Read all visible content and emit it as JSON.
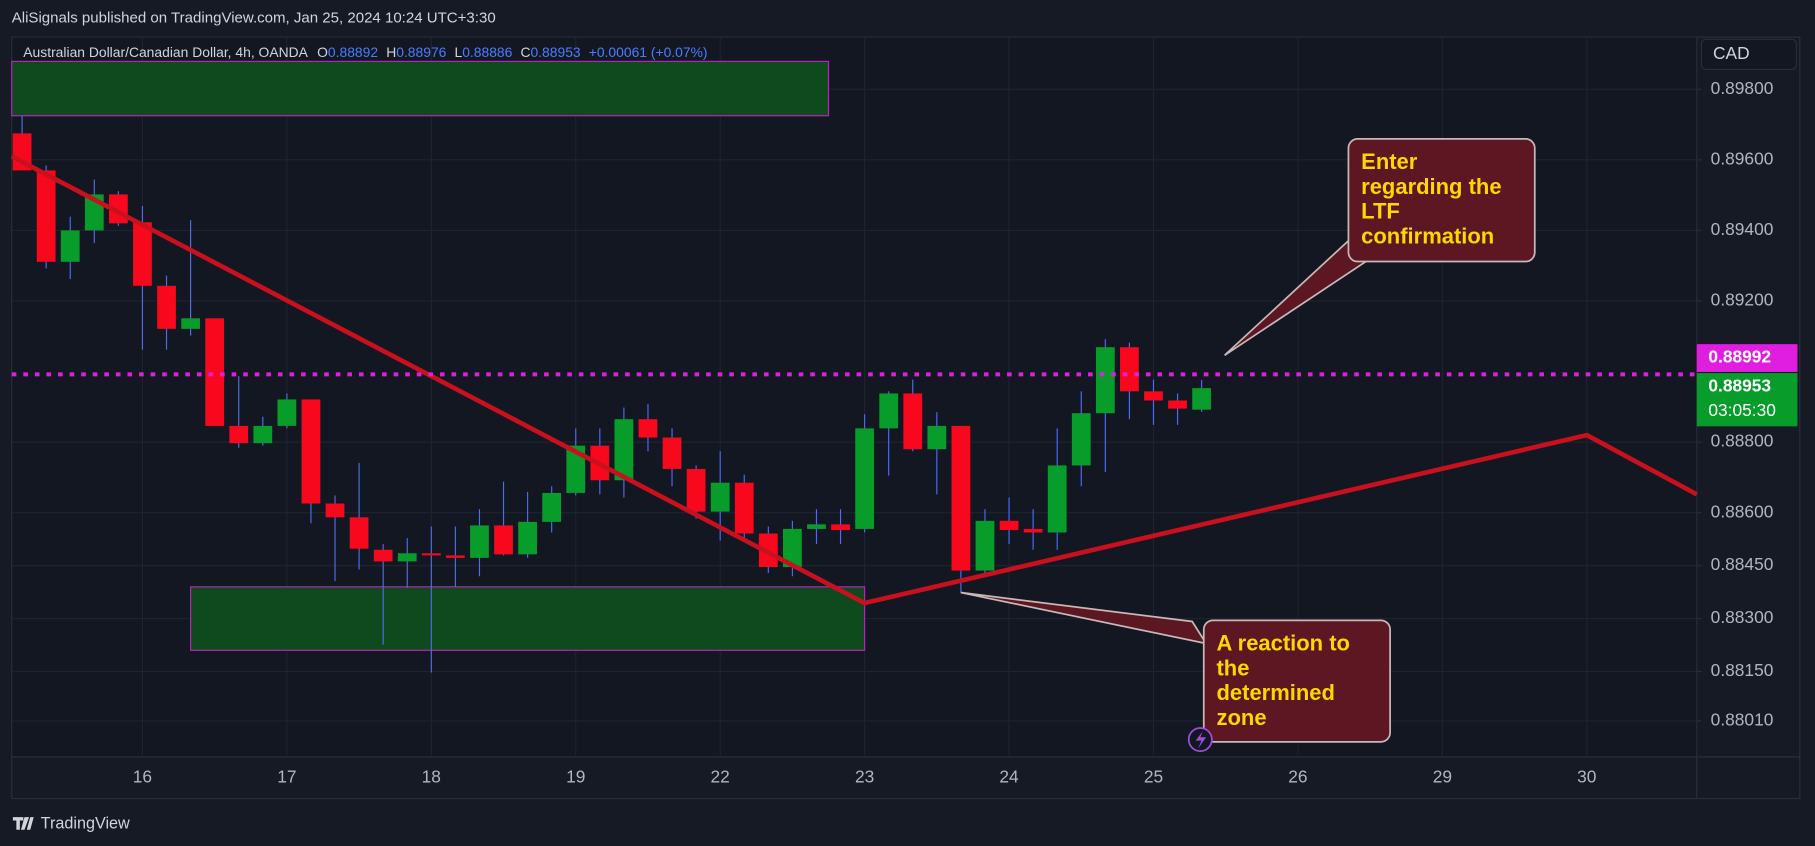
{
  "header": {
    "publisher": "AliSignals published on TradingView.com, Jan 25, 2024 10:24 UTC+3:30",
    "brand": "TradingView"
  },
  "chart_data": {
    "type": "candlestick",
    "title": "Australian Dollar/Canadian Dollar, 4h, OANDA",
    "ohlc_labels": [
      "O",
      "H",
      "L",
      "C"
    ],
    "change": "+0.00061 (+0.07%)",
    "currency": "CAD",
    "up_color": "#089c2a",
    "down_color": "#f7081d",
    "wick_color": "#4a6cf7",
    "grid": true,
    "x": [
      0,
      1,
      2,
      3,
      4,
      5,
      6,
      7,
      8,
      9,
      10,
      11,
      12,
      13,
      14,
      15,
      16,
      17,
      18,
      19,
      20,
      21,
      22,
      23,
      24,
      25,
      26,
      27,
      28,
      29,
      30,
      31,
      32,
      33,
      34,
      35,
      36,
      37,
      38,
      39,
      40,
      41,
      42,
      43,
      44,
      45,
      46,
      47,
      48,
      49
    ],
    "open": [
      0.89675,
      0.8957,
      0.89311,
      0.894,
      0.89502,
      0.89423,
      0.89243,
      0.89121,
      0.89151,
      0.88846,
      0.88797,
      0.88846,
      0.88921,
      0.88626,
      0.88587,
      0.88495,
      0.88462,
      0.88485,
      0.88479,
      0.88472,
      0.88564,
      0.88482,
      0.88574,
      0.88656,
      0.8879,
      0.88692,
      0.88865,
      0.88813,
      0.88724,
      0.88603,
      0.88685,
      0.88541,
      0.88446,
      0.88554,
      0.88567,
      0.88554,
      0.88839,
      0.88938,
      0.8878,
      0.88846,
      0.88436,
      0.88577,
      0.88554,
      0.88544,
      0.88734,
      0.88882,
      0.89069,
      0.88944,
      0.88918,
      0.88892
    ],
    "high": [
      0.89725,
      0.89584,
      0.89439,
      0.89544,
      0.89511,
      0.89469,
      0.89272,
      0.89429,
      0.89151,
      0.88987,
      0.88872,
      0.88938,
      0.88921,
      0.88649,
      0.88741,
      0.88511,
      0.88528,
      0.88561,
      0.88561,
      0.8861,
      0.88688,
      0.88659,
      0.88675,
      0.88839,
      0.88839,
      0.88898,
      0.88908,
      0.88839,
      0.88734,
      0.88774,
      0.88708,
      0.88561,
      0.88577,
      0.8861,
      0.8861,
      0.88879,
      0.88944,
      0.88977,
      0.88885,
      0.88846,
      0.8861,
      0.88643,
      0.8861,
      0.88839,
      0.88944,
      0.89092,
      0.89082,
      0.88977,
      0.88938,
      0.88976
    ],
    "low": [
      0.8957,
      0.89292,
      0.89262,
      0.89364,
      0.89413,
      0.89062,
      0.89062,
      0.89102,
      0.88846,
      0.88784,
      0.8879,
      0.88839,
      0.8857,
      0.88406,
      0.88439,
      0.88226,
      0.88387,
      0.88147,
      0.8839,
      0.8842,
      0.88479,
      0.88472,
      0.88544,
      0.88649,
      0.88652,
      0.88643,
      0.88774,
      0.88675,
      0.88583,
      0.88521,
      0.88521,
      0.88429,
      0.8842,
      0.88511,
      0.88511,
      0.88544,
      0.88705,
      0.88774,
      0.88652,
      0.88374,
      0.88426,
      0.88511,
      0.88495,
      0.88495,
      0.88675,
      0.88715,
      0.88865,
      0.88849,
      0.88849,
      0.88886
    ],
    "close": [
      0.8957,
      0.89311,
      0.894,
      0.89502,
      0.8942,
      0.89243,
      0.89121,
      0.89151,
      0.88846,
      0.88797,
      0.88846,
      0.88921,
      0.88626,
      0.88587,
      0.88498,
      0.88462,
      0.88485,
      0.88479,
      0.88472,
      0.88564,
      0.88482,
      0.88574,
      0.88656,
      0.8879,
      0.88692,
      0.88865,
      0.88813,
      0.88724,
      0.88603,
      0.88685,
      0.88541,
      0.88446,
      0.88554,
      0.88567,
      0.88551,
      0.88839,
      0.88938,
      0.8878,
      0.88846,
      0.88436,
      0.88577,
      0.88551,
      0.88544,
      0.88734,
      0.88882,
      0.89069,
      0.88944,
      0.88918,
      0.88895,
      0.88953
    ],
    "xlim": [
      -0.43,
      69.57
    ],
    "ylim": [
      0.87908,
      0.89948
    ],
    "xticks": [
      {
        "value": 5,
        "label": "16"
      },
      {
        "value": 11,
        "label": "17"
      },
      {
        "value": 17,
        "label": "18"
      },
      {
        "value": 23,
        "label": "19"
      },
      {
        "value": 29,
        "label": "22"
      },
      {
        "value": 35,
        "label": "23"
      },
      {
        "value": 41,
        "label": "24"
      },
      {
        "value": 47,
        "label": "25"
      },
      {
        "value": 53,
        "label": "26"
      },
      {
        "value": 59,
        "label": "29"
      },
      {
        "value": 65,
        "label": "30"
      }
    ],
    "yticks": [
      {
        "value": 0.898,
        "label": "0.89800"
      },
      {
        "value": 0.896,
        "label": "0.89600"
      },
      {
        "value": 0.894,
        "label": "0.89400"
      },
      {
        "value": 0.892,
        "label": "0.89200"
      },
      {
        "value": 0.888,
        "label": "0.88800"
      },
      {
        "value": 0.886,
        "label": "0.88600"
      },
      {
        "value": 0.8845,
        "label": "0.88450"
      },
      {
        "value": 0.883,
        "label": "0.88300"
      },
      {
        "value": 0.8815,
        "label": "0.88150"
      },
      {
        "value": 0.8801,
        "label": "0.88010"
      }
    ],
    "price_line": {
      "value": 0.88992,
      "color": "#e01ee0"
    },
    "countdown": "03:05:30",
    "zones": [
      {
        "x": [
          -0.43,
          33.5
        ],
        "y": [
          0.89879,
          0.89725
        ],
        "color": "#0f4a1f",
        "border": "#c020c0"
      },
      {
        "x": [
          7,
          35
        ],
        "y": [
          0.8839,
          0.8821
        ],
        "color": "#0f4a1f",
        "border": "#c020c0"
      }
    ],
    "trendline": {
      "x": [
        -0.43,
        35,
        65,
        69.57
      ],
      "y": [
        0.8961,
        0.88344,
        0.8882,
        0.88652
      ],
      "color": "#c8101e"
    },
    "annotations": [
      {
        "lines": [
          "Enter",
          "regarding the",
          "LTF",
          "confirmation"
        ]
      },
      {
        "lines": [
          "A reaction to",
          "the",
          "determined",
          "zone"
        ]
      }
    ]
  }
}
